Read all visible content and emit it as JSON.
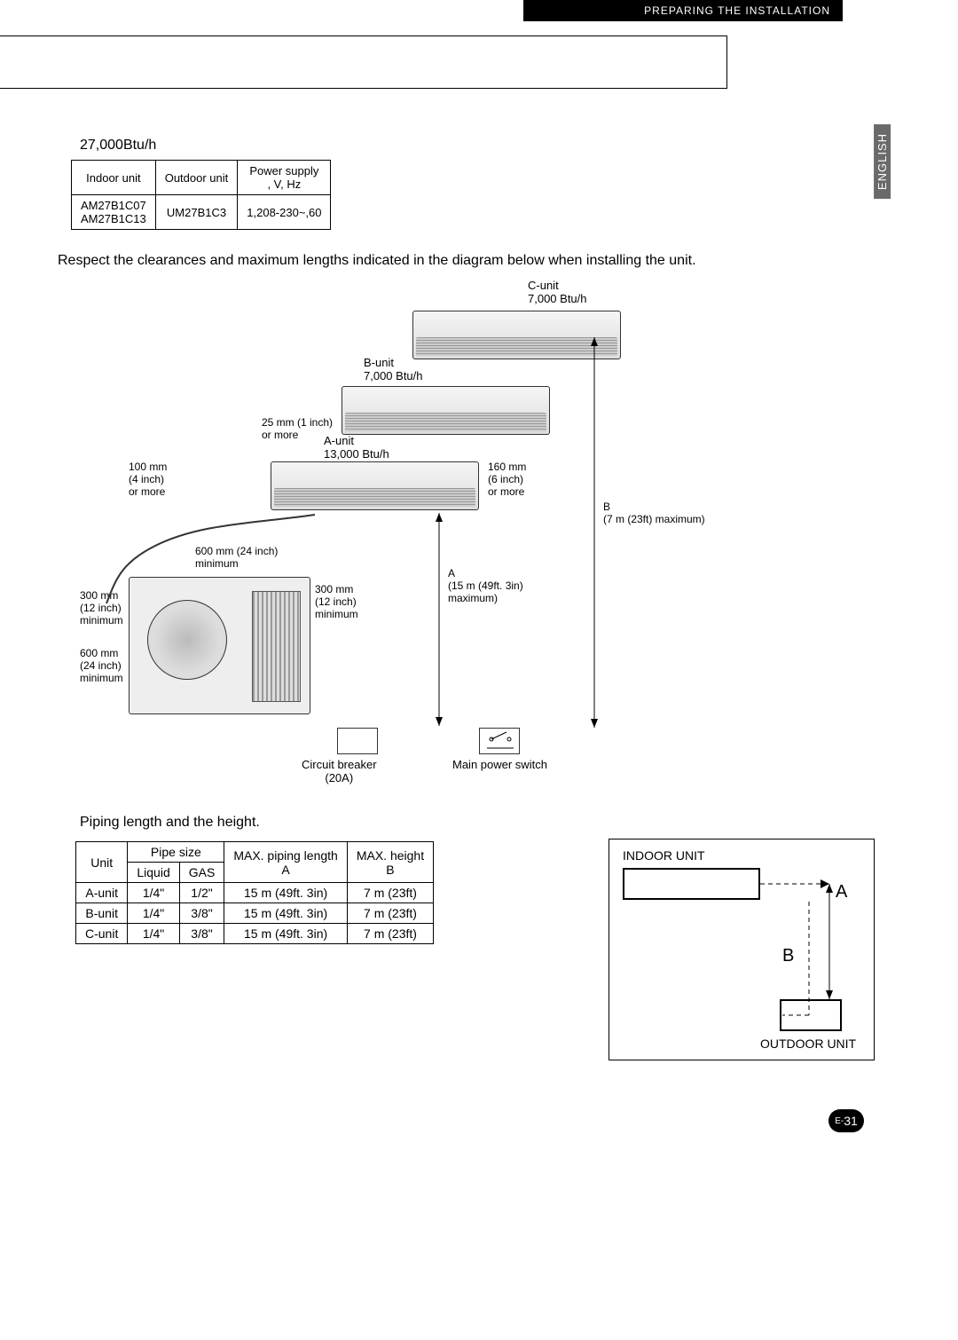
{
  "header": {
    "section": "PREPARING THE INSTALLATION",
    "lang_tab": "ENGLISH"
  },
  "btu_heading": "27,000Btu/h",
  "table1": {
    "headers": [
      "Indoor unit",
      "Outdoor unit",
      "Power supply\n, V, Hz"
    ],
    "rows": [
      [
        "AM27B1C07<br>AM27B1C13",
        "UM27B1C3",
        "1,208-230~,60"
      ]
    ]
  },
  "clearances_text": "Respect the clearances and maximum lengths indicated in the diagram below when installing the unit.",
  "diagram": {
    "c_unit": "C-unit\n7,000 Btu/h",
    "b_unit": "B-unit\n7,000 Btu/h",
    "a_unit": "A-unit\n13,000 Btu/h",
    "left_100": "100 mm\n(4 inch)\nor more",
    "right_160": "160 mm\n(6 inch)\nor more",
    "top_25": "25 mm (1 inch)\nor more",
    "clr_600_top": "600 mm (24 inch)\nminimum",
    "clr_300_side": "300 mm\n(12 inch)\nminimum",
    "clr_300_back": "300 mm\n(12 inch)\nminimum",
    "clr_600_bottom": "600 mm\n(24 inch)\nminimum",
    "a_len": "A\n(15 m (49ft. 3in)\nmaximum)",
    "b_len": "B\n(7 m (23ft) maximum)",
    "breaker": "Circuit breaker\n(20A)",
    "switch": "Main power switch"
  },
  "piping_title": "Piping length and the height.",
  "table2": {
    "h_unit": "Unit",
    "h_pipe": "Pipe size",
    "h_liquid": "Liquid",
    "h_gas": "GAS",
    "h_maxlen": "MAX. piping length\nA",
    "h_maxh": "MAX. height\nB",
    "rows": [
      [
        "A-unit",
        "1/4\"",
        "1/2\"",
        "15 m (49ft. 3in)",
        "7 m (23ft)"
      ],
      [
        "B-unit",
        "1/4\"",
        "3/8\"",
        "15 m (49ft. 3in)",
        "7 m (23ft)"
      ],
      [
        "C-unit",
        "1/4\"",
        "3/8\"",
        "15 m (49ft. 3in)",
        "7 m (23ft)"
      ]
    ]
  },
  "mini": {
    "indoor": "INDOOR UNIT",
    "outdoor": "OUTDOOR UNIT",
    "a": "A",
    "b": "B"
  },
  "page": {
    "prefix": "E-",
    "num": "31"
  }
}
